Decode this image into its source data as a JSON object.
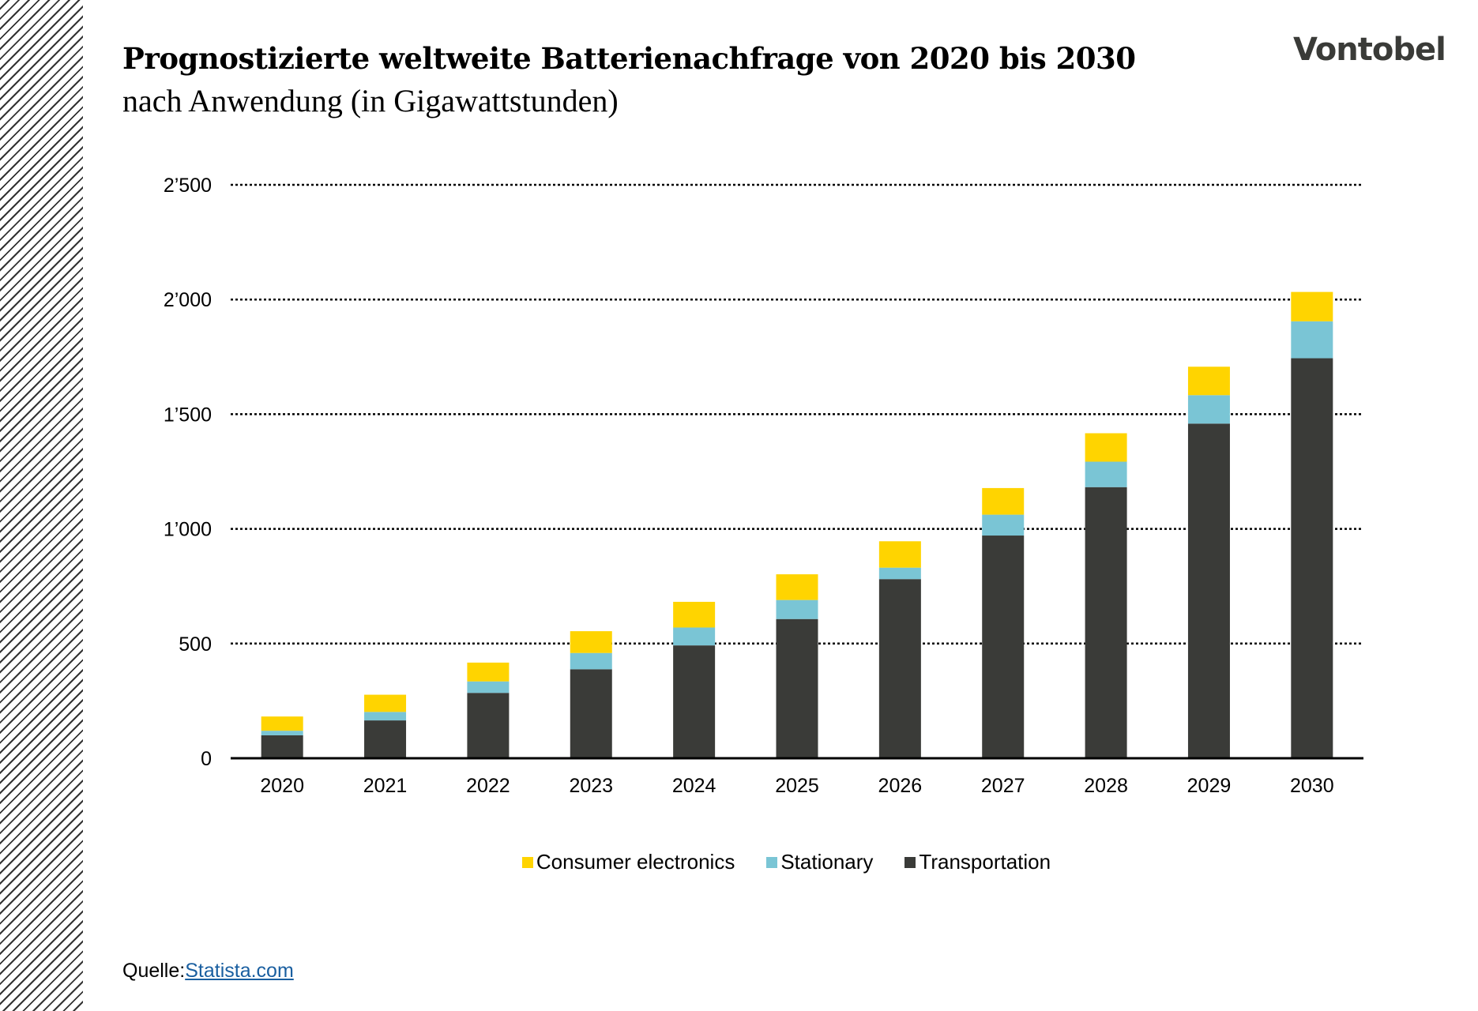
{
  "header": {
    "title": "Prognostizierte weltweite Batterienachfrage von 2020 bis 2030",
    "subtitle": "nach Anwendung (in Gigawattstunden)",
    "logo": "Vontobel"
  },
  "source": {
    "label": "Quelle:",
    "link": "Statista.com"
  },
  "chart_data": {
    "type": "bar",
    "stacked": true,
    "title": "Prognostizierte weltweite Batterienachfrage von 2020 bis 2030",
    "subtitle": "nach Anwendung (in Gigawattstunden)",
    "categories": [
      "2020",
      "2021",
      "2022",
      "2023",
      "2024",
      "2025",
      "2026",
      "2027",
      "2028",
      "2029",
      "2030"
    ],
    "series": [
      {
        "name": "Transportation",
        "color": "#3a3b38",
        "values": [
          100,
          165,
          285,
          388,
          492,
          607,
          781,
          971,
          1182,
          1459,
          1744
        ]
      },
      {
        "name": "Stationary",
        "color": "#7ac5d5",
        "values": [
          20,
          37,
          50,
          71,
          78,
          83,
          50,
          91,
          111,
          124,
          161
        ]
      },
      {
        "name": "Consumer electronics",
        "color": "#ffd400",
        "values": [
          62,
          75,
          82,
          95,
          112,
          112,
          115,
          116,
          124,
          124,
          128
        ]
      }
    ],
    "ylim": [
      0,
      2500
    ],
    "yticks": [
      0,
      500,
      1000,
      1500,
      2000,
      2500
    ],
    "ytick_labels": [
      "0",
      "500",
      "1’000",
      "1’500",
      "2’000",
      "2’500"
    ],
    "grid": true,
    "legend": "bottom",
    "legend_order": [
      "Consumer electronics",
      "Stationary",
      "Transportation"
    ]
  }
}
